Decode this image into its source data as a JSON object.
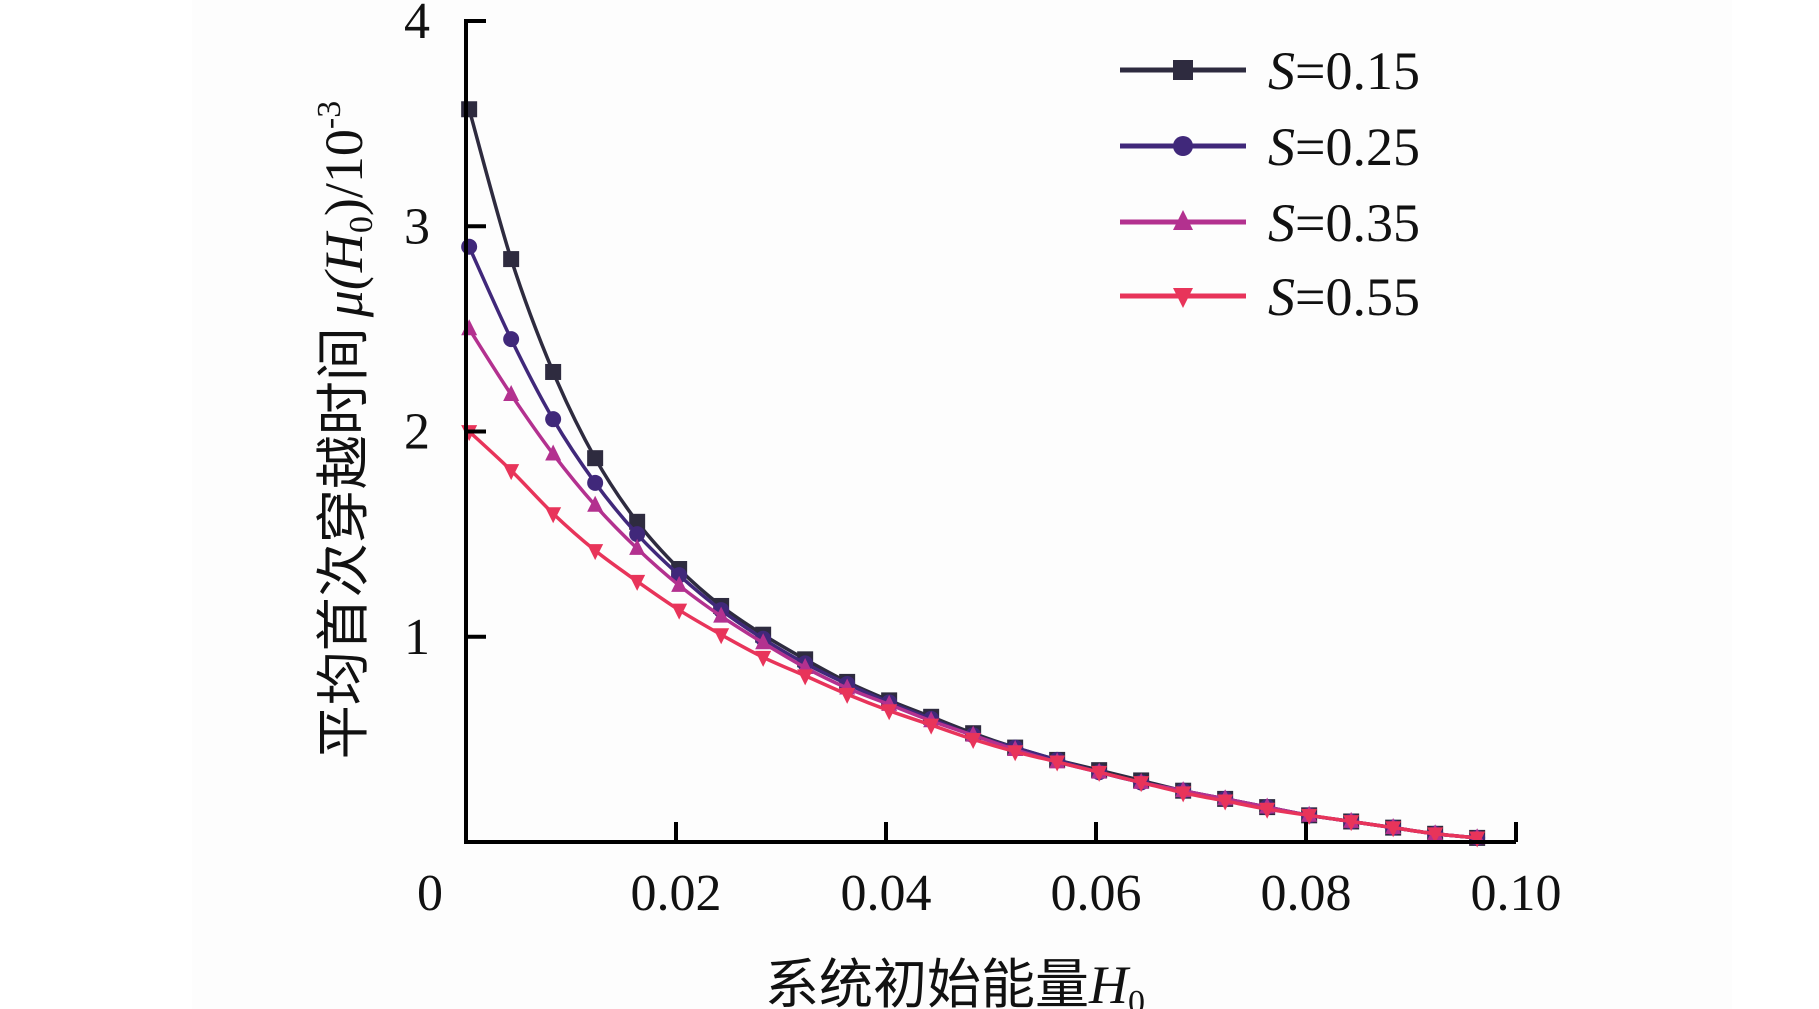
{
  "chart_data": {
    "type": "line",
    "title": "",
    "xlabel": "系统初始能量H₀",
    "xlabel_main": "系统初始能量",
    "xlabel_var": "H",
    "xlabel_sub": "0",
    "ylabel_cn": "平均首次穿越时间",
    "ylabel_mu": "μ(",
    "ylabel_var": "H",
    "ylabel_sub": "0",
    "ylabel_tail": ")/10",
    "ylabel_exp": "-3",
    "xlim": [
      0,
      0.1
    ],
    "ylim": [
      0,
      4
    ],
    "x_ticks": [
      "0",
      "0.02",
      "0.04",
      "0.06",
      "0.08",
      "0.10"
    ],
    "x_tick_values": [
      0,
      0.02,
      0.04,
      0.06,
      0.08,
      0.1
    ],
    "y_ticks": [
      "1",
      "2",
      "3",
      "4"
    ],
    "y_tick_values": [
      1,
      2,
      3,
      4
    ],
    "grid": false,
    "legend_position": "top-right",
    "x": [
      0.0003,
      0.0043,
      0.0083,
      0.0123,
      0.0163,
      0.0203,
      0.0243,
      0.0283,
      0.0323,
      0.0363,
      0.0403,
      0.0443,
      0.0483,
      0.0523,
      0.0563,
      0.0603,
      0.0643,
      0.0683,
      0.0723,
      0.0763,
      0.0803,
      0.0843,
      0.0883,
      0.0923,
      0.0963
    ],
    "series": [
      {
        "name": "S=0.15",
        "var": "S",
        "label": "=0.15",
        "color": "#2e2b3f",
        "marker": "square",
        "values": [
          3.57,
          2.84,
          2.29,
          1.87,
          1.56,
          1.33,
          1.15,
          1.01,
          0.89,
          0.78,
          0.69,
          0.61,
          0.53,
          0.46,
          0.4,
          0.35,
          0.3,
          0.25,
          0.21,
          0.17,
          0.13,
          0.1,
          0.07,
          0.04,
          0.02
        ]
      },
      {
        "name": "S=0.25",
        "var": "S",
        "label": "=0.25",
        "color": "#40287a",
        "marker": "circle",
        "values": [
          2.9,
          2.45,
          2.06,
          1.75,
          1.5,
          1.3,
          1.13,
          0.99,
          0.87,
          0.77,
          0.68,
          0.6,
          0.52,
          0.46,
          0.4,
          0.34,
          0.29,
          0.25,
          0.21,
          0.17,
          0.13,
          0.1,
          0.07,
          0.04,
          0.02
        ]
      },
      {
        "name": "S=0.35",
        "var": "S",
        "label": "=0.35",
        "color": "#b3318f",
        "marker": "triangle-up",
        "values": [
          2.5,
          2.18,
          1.89,
          1.64,
          1.43,
          1.25,
          1.1,
          0.97,
          0.85,
          0.75,
          0.67,
          0.59,
          0.52,
          0.45,
          0.39,
          0.34,
          0.29,
          0.25,
          0.21,
          0.17,
          0.13,
          0.1,
          0.07,
          0.04,
          0.02
        ]
      },
      {
        "name": "S=0.55",
        "var": "S",
        "label": "=0.55",
        "color": "#e8345a",
        "marker": "triangle-down",
        "values": [
          2.0,
          1.81,
          1.6,
          1.42,
          1.27,
          1.13,
          1.01,
          0.9,
          0.81,
          0.72,
          0.64,
          0.57,
          0.5,
          0.44,
          0.39,
          0.34,
          0.29,
          0.24,
          0.2,
          0.16,
          0.13,
          0.1,
          0.07,
          0.04,
          0.02
        ]
      }
    ]
  }
}
